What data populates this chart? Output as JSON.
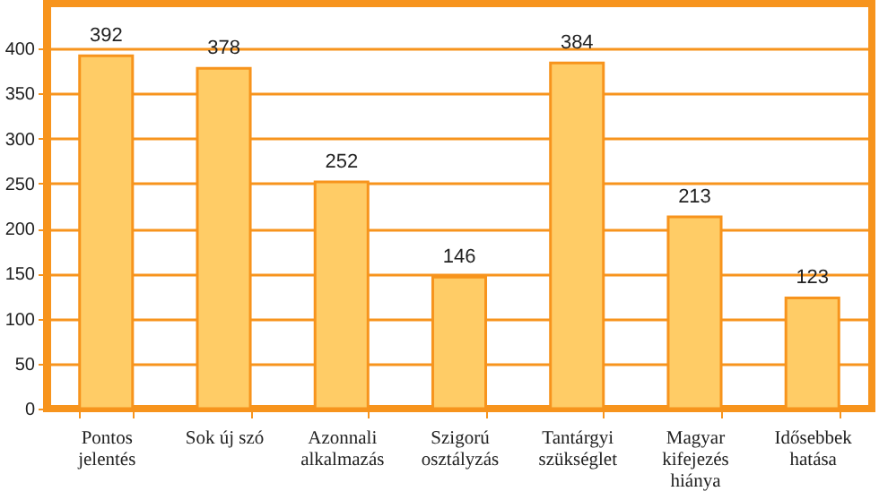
{
  "chart_data": {
    "type": "bar",
    "categories": [
      "Pontos jelentés",
      "Sok új szó",
      "Azonnali alkalmazás",
      "Szigorú osztályzás",
      "Tantárgyi szükséglet",
      "Magyar kifejezés hiánya",
      "Idősebbek hatása"
    ],
    "values": [
      392,
      378,
      252,
      146,
      384,
      213,
      123
    ],
    "color": "#ffcc66",
    "ylim": [
      0,
      450
    ],
    "yticks": [
      0,
      50,
      100,
      150,
      200,
      250,
      300,
      350,
      400
    ],
    "grid": "y",
    "data_labels": true
  }
}
